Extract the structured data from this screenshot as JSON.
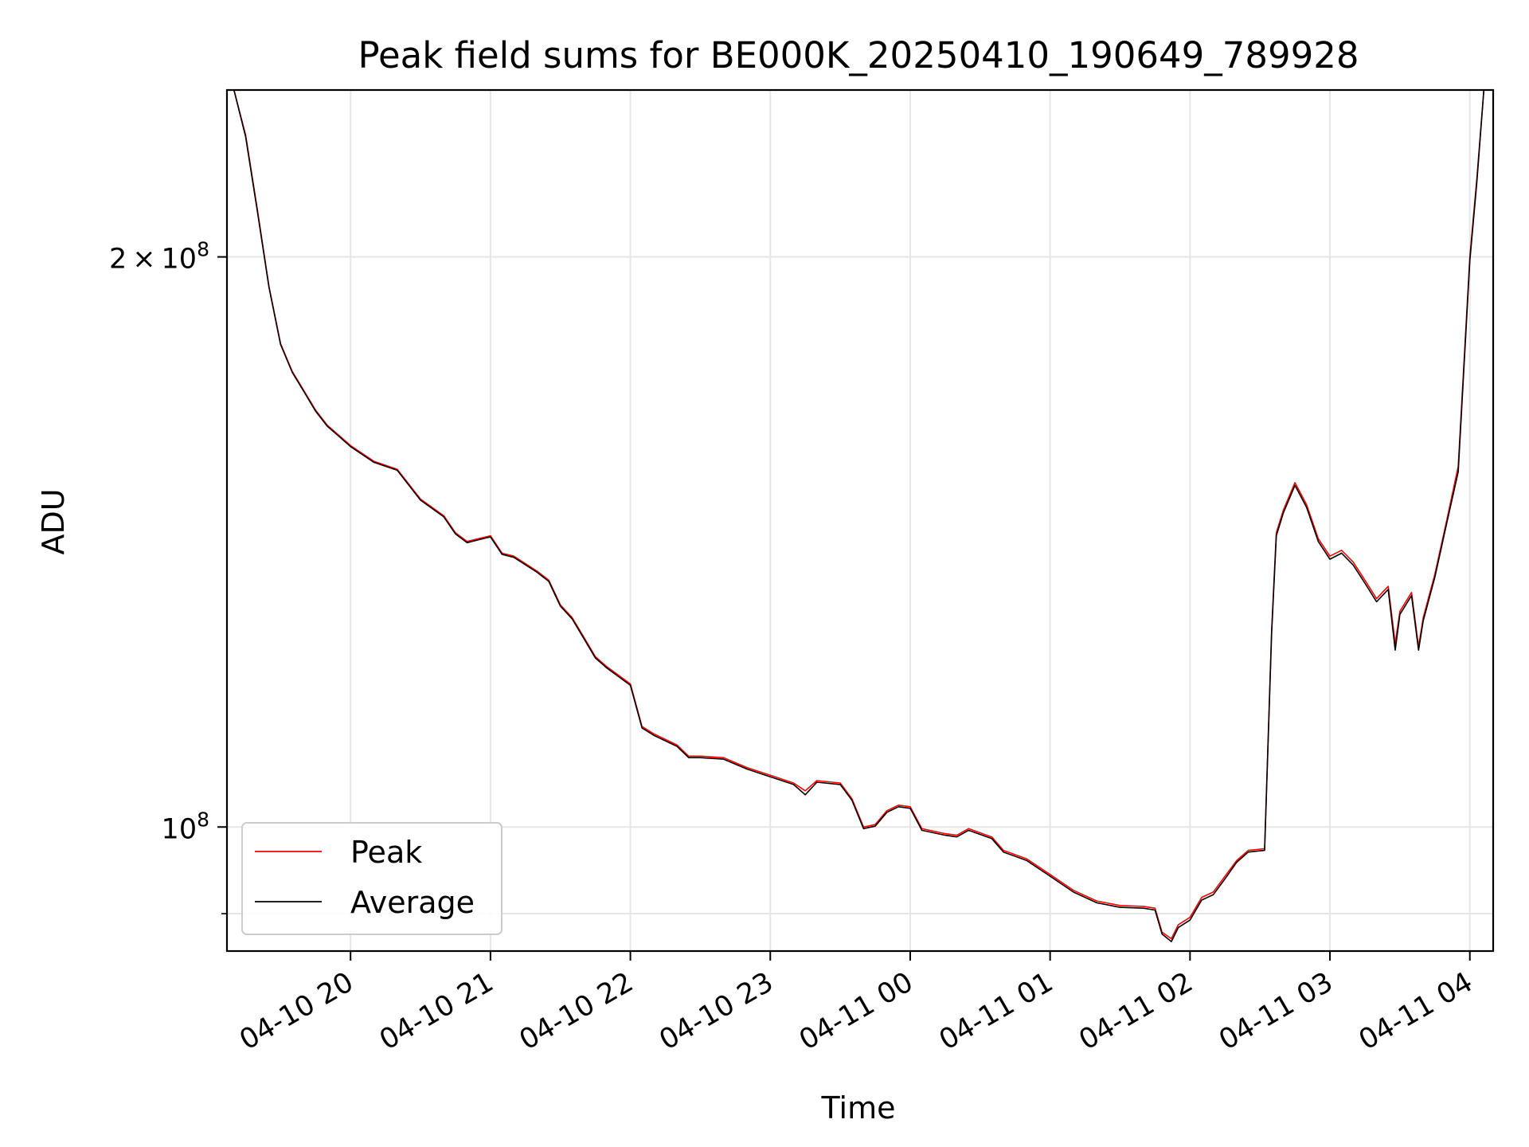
{
  "chart_data": {
    "type": "line",
    "title": "Peak field sums for BE000K_20250410_190649_789928",
    "xlabel": "Time",
    "ylabel": "ADU",
    "x_axis": {
      "kind": "datetime",
      "range": [
        "2025-04-10 19:07",
        "2025-04-11 04:10"
      ],
      "ticks": [
        {
          "value": "2025-04-10 20:00",
          "label": "04-10 20"
        },
        {
          "value": "2025-04-10 21:00",
          "label": "04-10 21"
        },
        {
          "value": "2025-04-10 22:00",
          "label": "04-10 22"
        },
        {
          "value": "2025-04-10 23:00",
          "label": "04-10 23"
        },
        {
          "value": "2025-04-11 00:00",
          "label": "04-11 00"
        },
        {
          "value": "2025-04-11 01:00",
          "label": "04-11 01"
        },
        {
          "value": "2025-04-11 02:00",
          "label": "04-11 02"
        },
        {
          "value": "2025-04-11 03:00",
          "label": "04-11 03"
        },
        {
          "value": "2025-04-11 04:00",
          "label": "04-11 04"
        }
      ],
      "tick_label_rotation_deg": 30
    },
    "y_axis": {
      "scale": "log",
      "range": [
        86000000,
        245000000
      ],
      "major_ticks": [
        {
          "value": 100000000,
          "base": "10",
          "exp": "8",
          "coef": ""
        },
        {
          "value": 200000000,
          "base": "10",
          "exp": "8",
          "coef": "2"
        }
      ],
      "minor_ticks_unlabeled": [
        90000000
      ]
    },
    "grid": true,
    "legend": {
      "position": "lower-left",
      "entries": [
        "Peak",
        "Average"
      ]
    },
    "series": [
      {
        "name": "Peak",
        "color": "#ff0000",
        "points": [
          [
            "2025-04-10 19:10",
            245000000
          ],
          [
            "2025-04-10 19:15",
            232000000
          ],
          [
            "2025-04-10 19:20",
            212000000
          ],
          [
            "2025-04-10 19:25",
            193000000
          ],
          [
            "2025-04-10 19:30",
            180000000
          ],
          [
            "2025-04-10 19:35",
            174000000
          ],
          [
            "2025-04-10 19:40",
            170000000
          ],
          [
            "2025-04-10 19:45",
            166000000
          ],
          [
            "2025-04-10 19:50",
            163000000
          ],
          [
            "2025-04-10 19:55",
            161000000
          ],
          [
            "2025-04-10 20:00",
            159000000
          ],
          [
            "2025-04-10 20:10",
            156000000
          ],
          [
            "2025-04-10 20:20",
            154500000
          ],
          [
            "2025-04-10 20:30",
            149000000
          ],
          [
            "2025-04-10 20:40",
            146000000
          ],
          [
            "2025-04-10 20:45",
            143000000
          ],
          [
            "2025-04-10 20:50",
            141500000
          ],
          [
            "2025-04-10 20:55",
            142000000
          ],
          [
            "2025-04-10 21:00",
            142500000
          ],
          [
            "2025-04-10 21:05",
            139500000
          ],
          [
            "2025-04-10 21:10",
            139000000
          ],
          [
            "2025-04-10 21:20",
            136500000
          ],
          [
            "2025-04-10 21:25",
            135000000
          ],
          [
            "2025-04-10 21:30",
            131000000
          ],
          [
            "2025-04-10 21:35",
            129000000
          ],
          [
            "2025-04-10 21:40",
            126000000
          ],
          [
            "2025-04-10 21:45",
            123000000
          ],
          [
            "2025-04-10 21:50",
            121500000
          ],
          [
            "2025-04-10 22:00",
            119000000
          ],
          [
            "2025-04-10 22:05",
            113000000
          ],
          [
            "2025-04-10 22:10",
            112000000
          ],
          [
            "2025-04-10 22:20",
            110500000
          ],
          [
            "2025-04-10 22:25",
            109000000
          ],
          [
            "2025-04-10 22:30",
            109000000
          ],
          [
            "2025-04-10 22:40",
            108800000
          ],
          [
            "2025-04-10 22:50",
            107500000
          ],
          [
            "2025-04-10 23:00",
            106500000
          ],
          [
            "2025-04-10 23:10",
            105500000
          ],
          [
            "2025-04-10 23:15",
            104500000
          ],
          [
            "2025-04-10 23:20",
            105800000
          ],
          [
            "2025-04-10 23:30",
            105500000
          ],
          [
            "2025-04-10 23:35",
            103500000
          ],
          [
            "2025-04-10 23:40",
            100000000
          ],
          [
            "2025-04-10 23:45",
            100300000
          ],
          [
            "2025-04-10 23:50",
            102000000
          ],
          [
            "2025-04-10 23:55",
            102700000
          ],
          [
            "2025-04-11 00:00",
            102500000
          ],
          [
            "2025-04-11 00:05",
            99800000
          ],
          [
            "2025-04-11 00:15",
            99200000
          ],
          [
            "2025-04-11 00:20",
            99000000
          ],
          [
            "2025-04-11 00:25",
            99800000
          ],
          [
            "2025-04-11 00:35",
            98800000
          ],
          [
            "2025-04-11 00:40",
            97200000
          ],
          [
            "2025-04-11 00:50",
            96200000
          ],
          [
            "2025-04-11 01:00",
            94400000
          ],
          [
            "2025-04-11 01:10",
            92600000
          ],
          [
            "2025-04-11 01:20",
            91400000
          ],
          [
            "2025-04-11 01:30",
            90900000
          ],
          [
            "2025-04-11 01:40",
            90800000
          ],
          [
            "2025-04-11 01:45",
            90600000
          ],
          [
            "2025-04-11 01:48",
            88000000
          ],
          [
            "2025-04-11 01:52",
            87300000
          ],
          [
            "2025-04-11 01:55",
            88800000
          ],
          [
            "2025-04-11 02:00",
            89600000
          ],
          [
            "2025-04-11 02:05",
            91800000
          ],
          [
            "2025-04-11 02:10",
            92400000
          ],
          [
            "2025-04-11 02:15",
            94200000
          ],
          [
            "2025-04-11 02:20",
            96000000
          ],
          [
            "2025-04-11 02:25",
            97200000
          ],
          [
            "2025-04-11 02:32",
            97400000
          ],
          [
            "2025-04-11 02:35",
            127000000
          ],
          [
            "2025-04-11 02:37",
            143000000
          ],
          [
            "2025-04-11 02:40",
            147000000
          ],
          [
            "2025-04-11 02:45",
            152000000
          ],
          [
            "2025-04-11 02:50",
            148000000
          ],
          [
            "2025-04-11 02:55",
            142000000
          ],
          [
            "2025-04-11 03:00",
            139000000
          ],
          [
            "2025-04-11 03:05",
            140000000
          ],
          [
            "2025-04-11 03:10",
            138000000
          ],
          [
            "2025-04-11 03:15",
            135000000
          ],
          [
            "2025-04-11 03:20",
            132000000
          ],
          [
            "2025-04-11 03:25",
            134000000
          ],
          [
            "2025-04-11 03:28",
            125000000
          ],
          [
            "2025-04-11 03:30",
            130000000
          ],
          [
            "2025-04-11 03:35",
            133000000
          ],
          [
            "2025-04-11 03:38",
            124500000
          ],
          [
            "2025-04-11 03:40",
            129000000
          ],
          [
            "2025-04-11 03:45",
            136000000
          ],
          [
            "2025-04-11 03:50",
            145000000
          ],
          [
            "2025-04-11 03:55",
            155000000
          ],
          [
            "2025-04-11 04:00",
            200000000
          ],
          [
            "2025-04-11 04:03",
            220000000
          ],
          [
            "2025-04-11 04:06",
            245000000
          ]
        ]
      },
      {
        "name": "Average",
        "color": "#000000",
        "points": [
          [
            "2025-04-10 19:10",
            245000000
          ],
          [
            "2025-04-10 19:15",
            231500000
          ],
          [
            "2025-04-10 19:20",
            211500000
          ],
          [
            "2025-04-10 19:25",
            192800000
          ],
          [
            "2025-04-10 19:30",
            179800000
          ],
          [
            "2025-04-10 19:35",
            173800000
          ],
          [
            "2025-04-10 19:40",
            169800000
          ],
          [
            "2025-04-10 19:45",
            165800000
          ],
          [
            "2025-04-10 19:50",
            162800000
          ],
          [
            "2025-04-10 19:55",
            160800000
          ],
          [
            "2025-04-10 20:00",
            158800000
          ],
          [
            "2025-04-10 20:10",
            155800000
          ],
          [
            "2025-04-10 20:20",
            154300000
          ],
          [
            "2025-04-10 20:30",
            148800000
          ],
          [
            "2025-04-10 20:40",
            145800000
          ],
          [
            "2025-04-10 20:45",
            142800000
          ],
          [
            "2025-04-10 20:50",
            141300000
          ],
          [
            "2025-04-10 20:55",
            141800000
          ],
          [
            "2025-04-10 21:00",
            142300000
          ],
          [
            "2025-04-10 21:05",
            139300000
          ],
          [
            "2025-04-10 21:10",
            138800000
          ],
          [
            "2025-04-10 21:20",
            136300000
          ],
          [
            "2025-04-10 21:25",
            134800000
          ],
          [
            "2025-04-10 21:30",
            130800000
          ],
          [
            "2025-04-10 21:35",
            128800000
          ],
          [
            "2025-04-10 21:40",
            125800000
          ],
          [
            "2025-04-10 21:45",
            122800000
          ],
          [
            "2025-04-10 21:50",
            121300000
          ],
          [
            "2025-04-10 22:00",
            118800000
          ],
          [
            "2025-04-10 22:05",
            112800000
          ],
          [
            "2025-04-10 22:10",
            111800000
          ],
          [
            "2025-04-10 22:20",
            110300000
          ],
          [
            "2025-04-10 22:25",
            108800000
          ],
          [
            "2025-04-10 22:30",
            108800000
          ],
          [
            "2025-04-10 22:40",
            108600000
          ],
          [
            "2025-04-10 22:50",
            107300000
          ],
          [
            "2025-04-10 23:00",
            106300000
          ],
          [
            "2025-04-10 23:10",
            105300000
          ],
          [
            "2025-04-10 23:15",
            104000000
          ],
          [
            "2025-04-10 23:20",
            105600000
          ],
          [
            "2025-04-10 23:30",
            105300000
          ],
          [
            "2025-04-10 23:35",
            103300000
          ],
          [
            "2025-04-10 23:40",
            99800000
          ],
          [
            "2025-04-10 23:45",
            100100000
          ],
          [
            "2025-04-10 23:50",
            101800000
          ],
          [
            "2025-04-10 23:55",
            102500000
          ],
          [
            "2025-04-11 00:00",
            102300000
          ],
          [
            "2025-04-11 00:05",
            99600000
          ],
          [
            "2025-04-11 00:15",
            99000000
          ],
          [
            "2025-04-11 00:20",
            98800000
          ],
          [
            "2025-04-11 00:25",
            99600000
          ],
          [
            "2025-04-11 00:35",
            98600000
          ],
          [
            "2025-04-11 00:40",
            97000000
          ],
          [
            "2025-04-11 00:50",
            96000000
          ],
          [
            "2025-04-11 01:00",
            94200000
          ],
          [
            "2025-04-11 01:10",
            92400000
          ],
          [
            "2025-04-11 01:20",
            91200000
          ],
          [
            "2025-04-11 01:30",
            90700000
          ],
          [
            "2025-04-11 01:40",
            90600000
          ],
          [
            "2025-04-11 01:45",
            90400000
          ],
          [
            "2025-04-11 01:48",
            87800000
          ],
          [
            "2025-04-11 01:52",
            87000000
          ],
          [
            "2025-04-11 01:55",
            88500000
          ],
          [
            "2025-04-11 02:00",
            89300000
          ],
          [
            "2025-04-11 02:05",
            91500000
          ],
          [
            "2025-04-11 02:10",
            92100000
          ],
          [
            "2025-04-11 02:15",
            93900000
          ],
          [
            "2025-04-11 02:20",
            95800000
          ],
          [
            "2025-04-11 02:25",
            97000000
          ],
          [
            "2025-04-11 02:32",
            97200000
          ],
          [
            "2025-04-11 02:35",
            126500000
          ],
          [
            "2025-04-11 02:37",
            142500000
          ],
          [
            "2025-04-11 02:40",
            146500000
          ],
          [
            "2025-04-11 02:45",
            151500000
          ],
          [
            "2025-04-11 02:50",
            147500000
          ],
          [
            "2025-04-11 02:55",
            141500000
          ],
          [
            "2025-04-11 03:00",
            138500000
          ],
          [
            "2025-04-11 03:05",
            139500000
          ],
          [
            "2025-04-11 03:10",
            137500000
          ],
          [
            "2025-04-11 03:15",
            134500000
          ],
          [
            "2025-04-11 03:20",
            131500000
          ],
          [
            "2025-04-11 03:25",
            133500000
          ],
          [
            "2025-04-11 03:28",
            124000000
          ],
          [
            "2025-04-11 03:30",
            129500000
          ],
          [
            "2025-04-11 03:35",
            132500000
          ],
          [
            "2025-04-11 03:38",
            124000000
          ],
          [
            "2025-04-11 03:40",
            128500000
          ],
          [
            "2025-04-11 03:45",
            135500000
          ],
          [
            "2025-04-11 03:50",
            144500000
          ],
          [
            "2025-04-11 03:55",
            154000000
          ],
          [
            "2025-04-11 04:00",
            199000000
          ],
          [
            "2025-04-11 04:03",
            219000000
          ],
          [
            "2025-04-11 04:06",
            245000000
          ]
        ]
      }
    ]
  }
}
